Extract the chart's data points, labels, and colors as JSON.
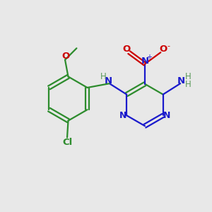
{
  "bg_color": "#e8e8e8",
  "bond_color": "#2d8c2d",
  "N_color": "#1a1acc",
  "O_color": "#cc0000",
  "Cl_color": "#2d8c2d",
  "H_color": "#5a9a5a",
  "line_width": 1.6,
  "figsize": [
    3.0,
    3.0
  ],
  "dpi": 100,
  "xlim": [
    0,
    10
  ],
  "ylim": [
    0,
    10
  ]
}
